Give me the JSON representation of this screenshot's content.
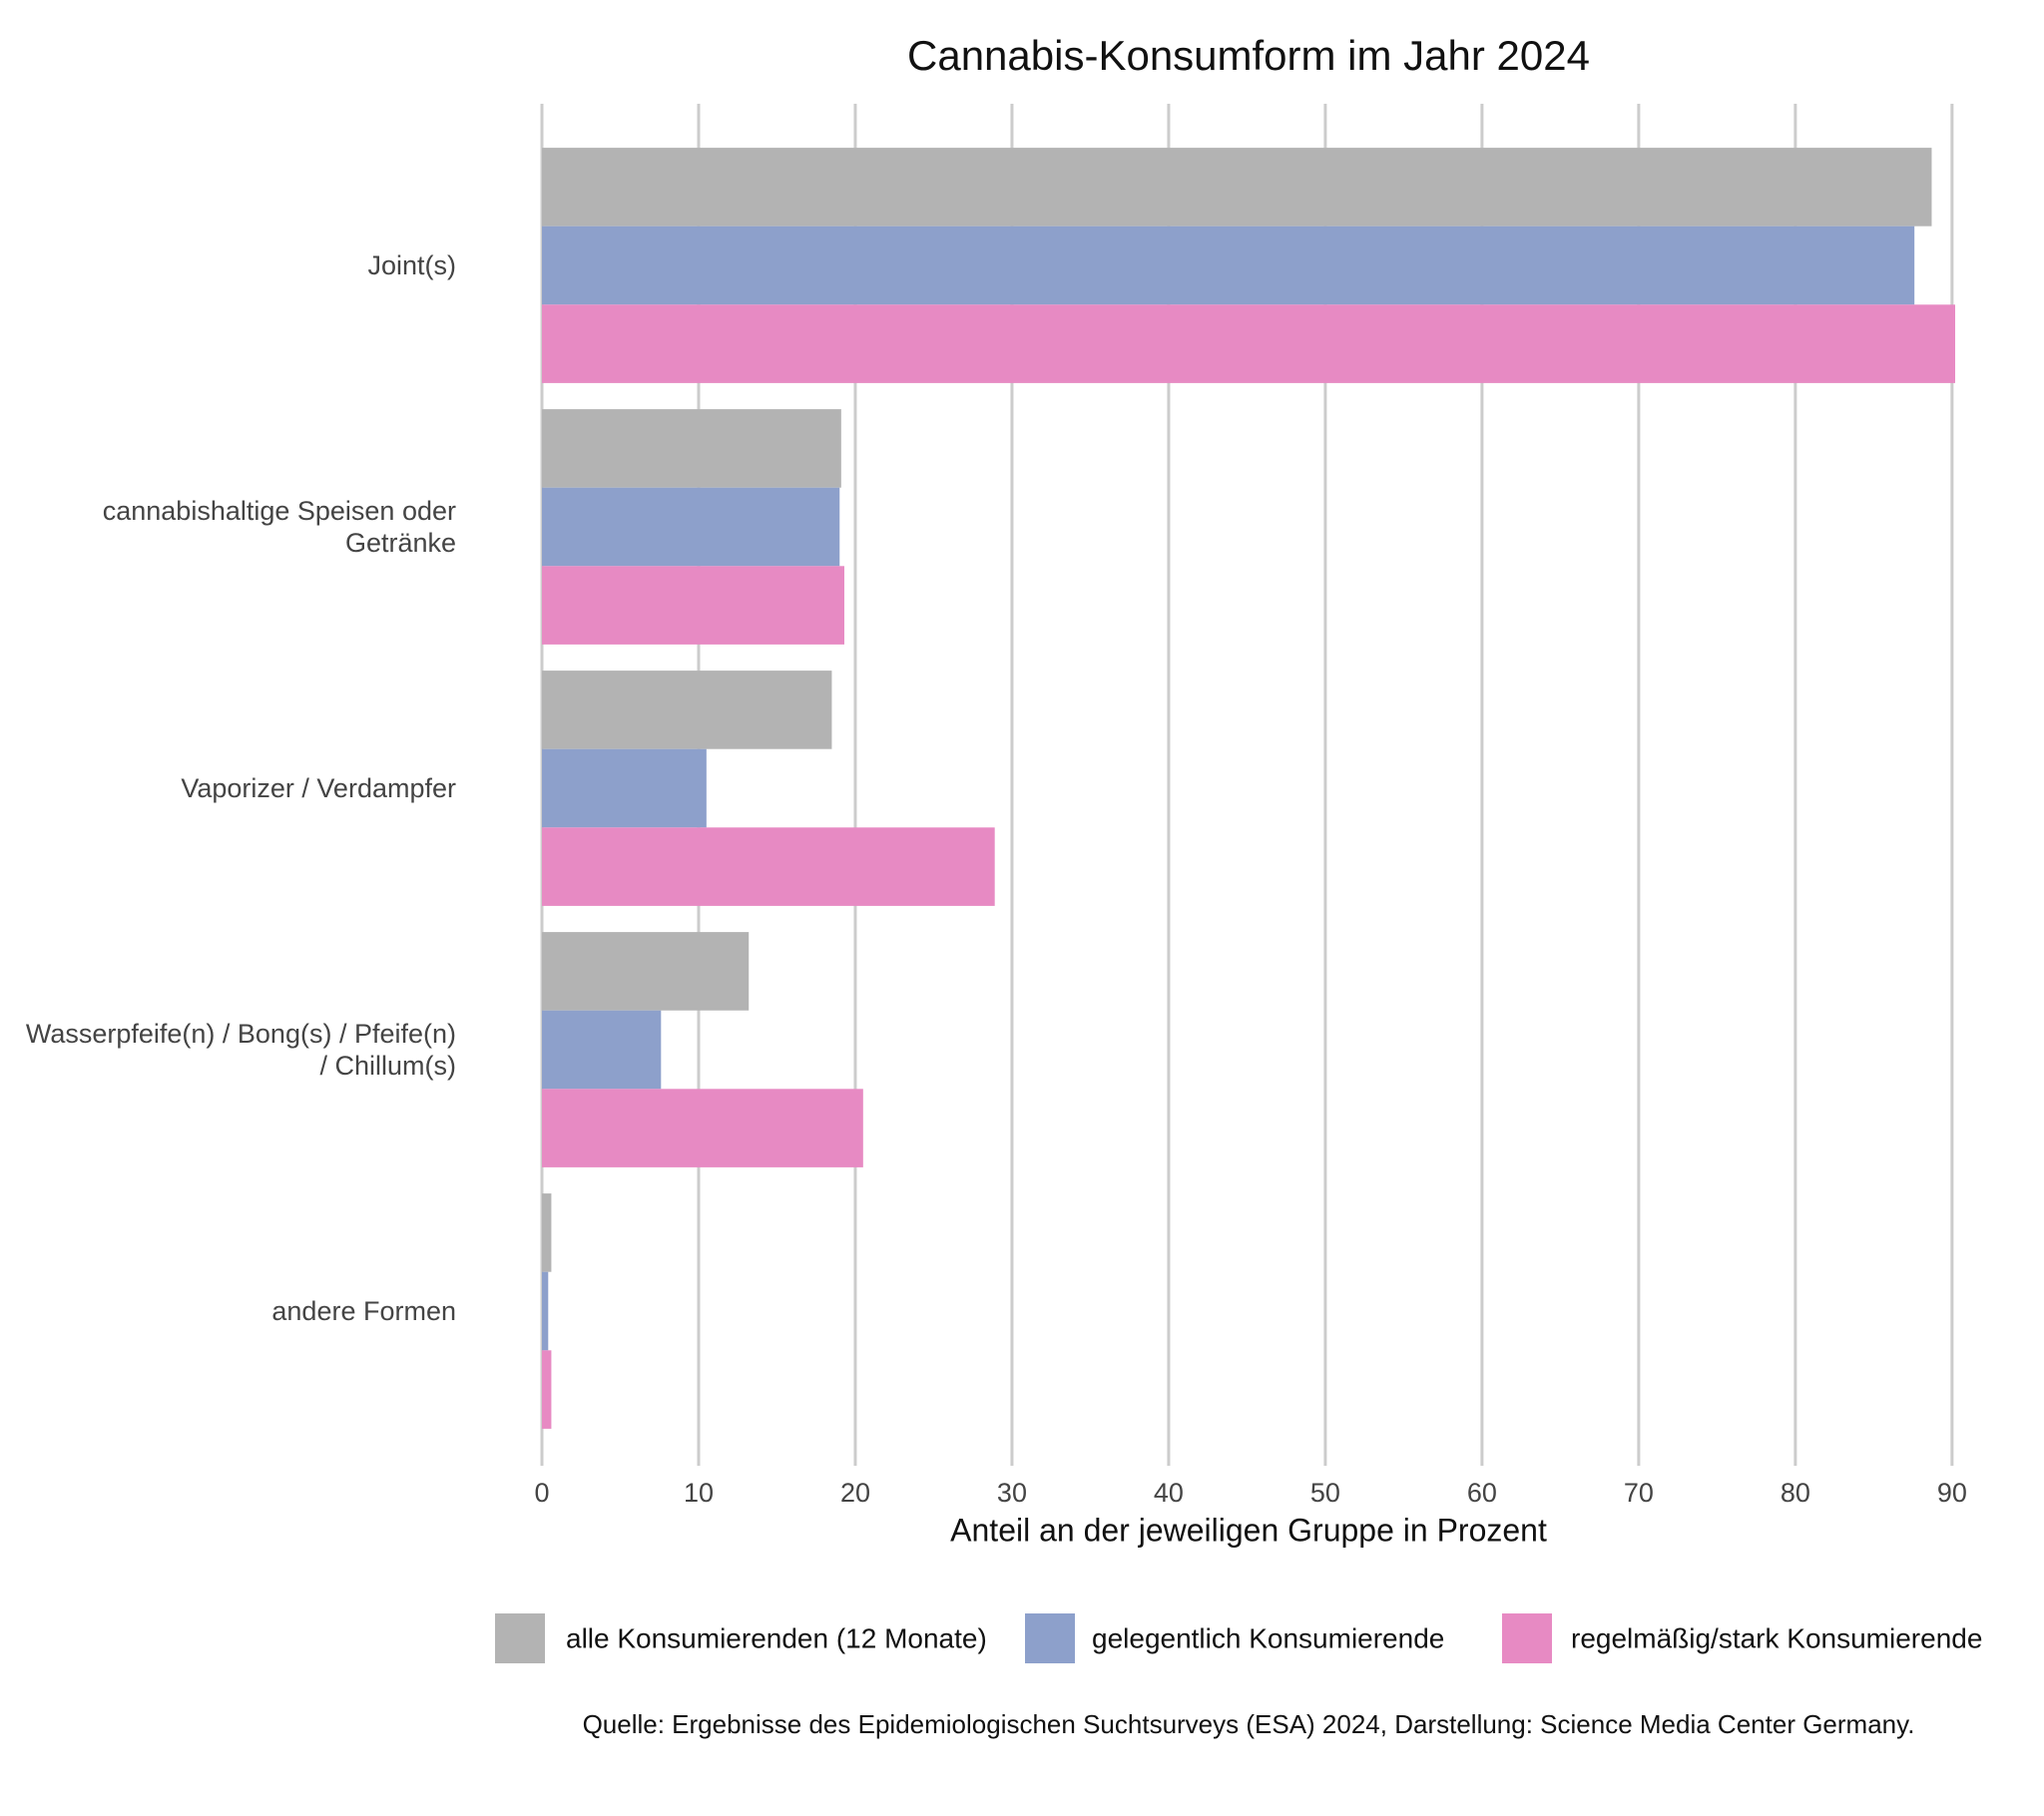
{
  "chart_data": {
    "type": "bar",
    "orientation": "horizontal",
    "title": "Cannabis-Konsumform im Jahr 2024",
    "x_label": "Anteil an der jeweiligen Gruppe in Prozent",
    "source": "Quelle: Ergebnisse des Epidemiologischen Suchtsurveys (ESA) 2024, Darstellung: Science Media Center Germany.",
    "categories": [
      "Joint(s)",
      "cannabishaltige Speisen oder Getränke",
      "Vaporizer / Verdampfer",
      "Wasserpfeife(n) / Bong(s) / Pfeife(n) / Chillum(s)",
      "andere Formen"
    ],
    "series": [
      {
        "name": "alle Konsumierenden (12 Monate)",
        "color": "#b3b3b3",
        "values": [
          88.7,
          19.1,
          18.5,
          13.2,
          0.6
        ]
      },
      {
        "name": "gelegentlich Konsumierende",
        "color": "#8da0cb",
        "values": [
          87.6,
          19.0,
          10.5,
          7.6,
          0.4
        ]
      },
      {
        "name": "regelmäßig/stark Konsumierende",
        "color": "#e78ac3",
        "values": [
          90.2,
          19.3,
          28.9,
          20.5,
          0.6
        ]
      }
    ],
    "xlim": [
      0,
      90.2
    ],
    "xticks": [
      0,
      10,
      20,
      30,
      40,
      50,
      60,
      70,
      80,
      90
    ],
    "grid": true,
    "legend": "bottom"
  }
}
